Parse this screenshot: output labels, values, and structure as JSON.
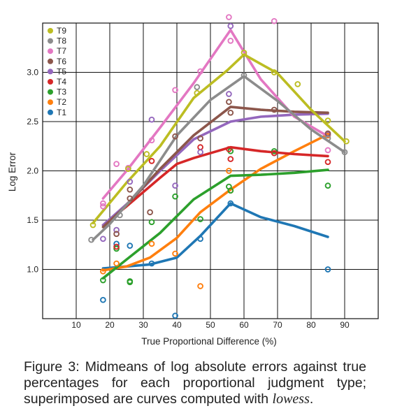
{
  "chart_data": {
    "type": "scatter",
    "title": "",
    "xlabel": "True Proportional Difference (%)",
    "ylabel": "Log Error",
    "xlim": [
      0,
      100
    ],
    "ylim": [
      0.5,
      3.5
    ],
    "xticks": [
      10,
      20,
      30,
      40,
      50,
      60,
      70,
      80,
      90
    ],
    "yticks": [
      1.0,
      1.5,
      2.0,
      2.5,
      3.0
    ],
    "grid": true,
    "legend_position": "top-left",
    "series": [
      {
        "name": "T9",
        "color": "#bcbd22",
        "points": [
          [
            15,
            1.45
          ],
          [
            25.5,
            2.02
          ],
          [
            31,
            2.17
          ],
          [
            46,
            2.79
          ],
          [
            60,
            3.2
          ],
          [
            69,
            3.0
          ],
          [
            76,
            2.88
          ],
          [
            85,
            2.51
          ],
          [
            90.5,
            2.3
          ]
        ],
        "curve": [
          [
            15,
            1.47
          ],
          [
            25,
            1.88
          ],
          [
            35,
            2.25
          ],
          [
            45,
            2.74
          ],
          [
            55,
            3.02
          ],
          [
            60,
            3.18
          ],
          [
            70,
            2.99
          ],
          [
            80,
            2.62
          ],
          [
            90,
            2.3
          ]
        ]
      },
      {
        "name": "T8",
        "color": "#8c8c8c",
        "points": [
          [
            14.5,
            1.3
          ],
          [
            23,
            1.55
          ],
          [
            46,
            2.85
          ],
          [
            60,
            2.97
          ],
          [
            85,
            2.33
          ],
          [
            90,
            2.19
          ]
        ],
        "curve": [
          [
            15,
            1.3
          ],
          [
            20,
            1.46
          ],
          [
            30,
            1.85
          ],
          [
            40,
            2.36
          ],
          [
            50,
            2.72
          ],
          [
            60,
            2.96
          ],
          [
            70,
            2.71
          ],
          [
            80,
            2.42
          ],
          [
            90,
            2.19
          ]
        ]
      },
      {
        "name": "T7",
        "color": "#e377c2",
        "points": [
          [
            18,
            1.67
          ],
          [
            18,
            1.64
          ],
          [
            22,
            2.07
          ],
          [
            25.5,
            2.03
          ],
          [
            32.5,
            2.31
          ],
          [
            39.5,
            2.82
          ],
          [
            47,
            3.01
          ],
          [
            55.5,
            3.56
          ],
          [
            56,
            3.32
          ],
          [
            69,
            3.52
          ],
          [
            85,
            2.21
          ]
        ],
        "curve": [
          [
            18,
            1.72
          ],
          [
            25,
            2.0
          ],
          [
            35,
            2.44
          ],
          [
            45,
            2.89
          ],
          [
            56,
            3.43
          ],
          [
            65,
            2.93
          ],
          [
            75,
            2.55
          ],
          [
            85,
            2.35
          ]
        ]
      },
      {
        "name": "T6",
        "color": "#8c564b",
        "points": [
          [
            22,
            1.36
          ],
          [
            26,
            1.81
          ],
          [
            26,
            1.72
          ],
          [
            32,
            1.58
          ],
          [
            39.5,
            2.35
          ],
          [
            47,
            2.33
          ],
          [
            55.5,
            2.7
          ],
          [
            56,
            2.59
          ],
          [
            69,
            2.62
          ],
          [
            85,
            2.38
          ]
        ],
        "curve": [
          [
            18,
            1.43
          ],
          [
            25,
            1.65
          ],
          [
            35,
            2.02
          ],
          [
            45,
            2.36
          ],
          [
            56,
            2.65
          ],
          [
            65,
            2.62
          ],
          [
            75,
            2.6
          ],
          [
            85,
            2.59
          ]
        ]
      },
      {
        "name": "T5",
        "color": "#9467bd",
        "points": [
          [
            18,
            1.31
          ],
          [
            22,
            1.4
          ],
          [
            26,
            1.89
          ],
          [
            32.5,
            2.52
          ],
          [
            39.5,
            1.85
          ],
          [
            47,
            2.19
          ],
          [
            55.5,
            2.78
          ],
          [
            56,
            3.47
          ],
          [
            85,
            2.37
          ]
        ],
        "curve": [
          [
            18,
            1.45
          ],
          [
            25,
            1.66
          ],
          [
            35,
            2.0
          ],
          [
            45,
            2.32
          ],
          [
            56,
            2.5
          ],
          [
            65,
            2.55
          ],
          [
            75,
            2.57
          ],
          [
            85,
            2.58
          ]
        ]
      },
      {
        "name": "T4",
        "color": "#d62728",
        "points": [
          [
            22,
            1.23
          ],
          [
            32.5,
            2.1
          ],
          [
            47,
            2.24
          ],
          [
            55.5,
            2.22
          ],
          [
            56,
            2.12
          ],
          [
            69,
            2.18
          ],
          [
            85,
            2.09
          ]
        ],
        "curve": [
          [
            18,
            1.45
          ],
          [
            25,
            1.64
          ],
          [
            35,
            1.93
          ],
          [
            40,
            2.07
          ],
          [
            45,
            2.13
          ],
          [
            56,
            2.24
          ],
          [
            65,
            2.2
          ],
          [
            75,
            2.17
          ],
          [
            85,
            2.15
          ]
        ]
      },
      {
        "name": "T3",
        "color": "#2ca02c",
        "points": [
          [
            18,
            0.89
          ],
          [
            22,
            1.21
          ],
          [
            26,
            0.88
          ],
          [
            26,
            0.87
          ],
          [
            32.5,
            1.48
          ],
          [
            39.5,
            1.74
          ],
          [
            47,
            1.51
          ],
          [
            55.5,
            1.84
          ],
          [
            56,
            1.8
          ],
          [
            56,
            2.2
          ],
          [
            69,
            2.2
          ],
          [
            85,
            1.85
          ]
        ],
        "curve": [
          [
            18,
            0.91
          ],
          [
            25,
            1.1
          ],
          [
            35,
            1.37
          ],
          [
            45,
            1.71
          ],
          [
            56,
            1.95
          ],
          [
            65,
            1.96
          ],
          [
            75,
            1.98
          ],
          [
            85,
            2.01
          ]
        ]
      },
      {
        "name": "T2",
        "color": "#ff7f0e",
        "points": [
          [
            18,
            0.98
          ],
          [
            22,
            1.06
          ],
          [
            32.5,
            1.26
          ],
          [
            39.5,
            1.16
          ],
          [
            47,
            0.83
          ],
          [
            55.5,
            2.0
          ],
          [
            56,
            1.8
          ],
          [
            85,
            2.36
          ]
        ],
        "curve": [
          [
            18,
            0.99
          ],
          [
            25,
            1.03
          ],
          [
            32,
            1.12
          ],
          [
            40,
            1.32
          ],
          [
            47,
            1.58
          ],
          [
            56,
            1.81
          ],
          [
            65,
            2.02
          ],
          [
            75,
            2.2
          ],
          [
            85,
            2.37
          ]
        ]
      },
      {
        "name": "T1",
        "color": "#1f77b4",
        "points": [
          [
            18,
            0.69
          ],
          [
            22,
            1.26
          ],
          [
            26,
            1.24
          ],
          [
            32.5,
            1.06
          ],
          [
            39.5,
            0.53
          ],
          [
            47,
            1.31
          ],
          [
            56,
            1.67
          ],
          [
            85,
            1.0
          ]
        ],
        "curve": [
          [
            18,
            1.01
          ],
          [
            25,
            1.03
          ],
          [
            32,
            1.05
          ],
          [
            40,
            1.12
          ],
          [
            47,
            1.34
          ],
          [
            56,
            1.67
          ],
          [
            65,
            1.53
          ],
          [
            75,
            1.44
          ],
          [
            85,
            1.33
          ]
        ]
      }
    ]
  },
  "caption": {
    "text_main": "Figure 3:  Midmeans of log absolute errors against true percentages for each proportional judgment type; superimposed are curves computed with ",
    "text_em": "lowess",
    "text_end": "."
  }
}
